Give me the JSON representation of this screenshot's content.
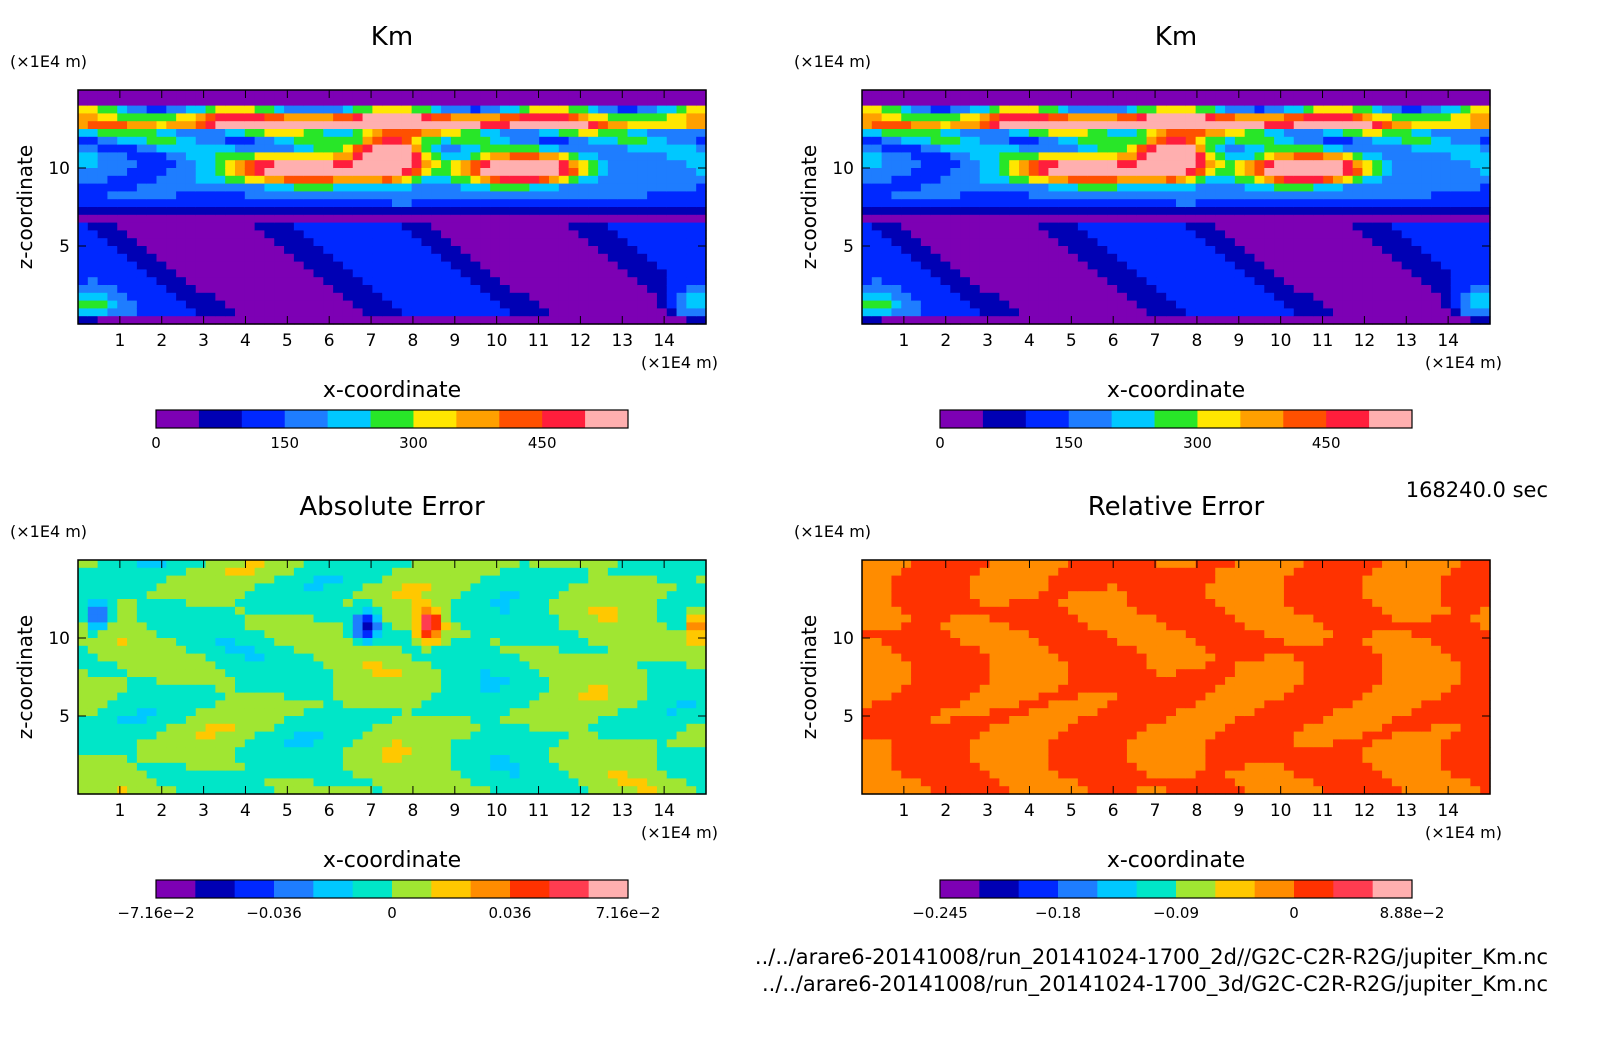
{
  "timestamp": "168240.0 sec",
  "footer": {
    "line1": "../../arare6-20141008/run_20141024-1700_2d//G2C-C2R-R2G/jupiter_Km.nc",
    "line2": "../../arare6-20141008/run_20141024-1700_3d/G2C-C2R-R2G/jupiter_Km.nc"
  },
  "chart_data": [
    {
      "type": "heatmap",
      "title": "Km",
      "xlabel": "x-coordinate",
      "ylabel": "z-coordinate",
      "x_unit": "(×1E4 m)",
      "y_unit": "(×1E4 m)",
      "xlim": [
        0,
        15
      ],
      "ylim": [
        0,
        15
      ],
      "x_ticks": [
        "1",
        "2",
        "3",
        "4",
        "5",
        "6",
        "7",
        "8",
        "9",
        "10",
        "11",
        "12",
        "13",
        "14"
      ],
      "y_ticks": [
        "5",
        "10"
      ],
      "colorbar": {
        "levels": 11,
        "tick_labels": [
          "0",
          "150",
          "300",
          "450"
        ],
        "colors": [
          "#7d00b4",
          "#0000b4",
          "#0028ff",
          "#1e7dff",
          "#00c8ff",
          "#28e628",
          "#ffe600",
          "#ffa000",
          "#ff5000",
          "#ff1e3c",
          "#ffafaf"
        ]
      },
      "field": "km"
    },
    {
      "type": "heatmap",
      "title": "Km",
      "xlabel": "x-coordinate",
      "ylabel": "z-coordinate",
      "x_unit": "(×1E4 m)",
      "y_unit": "(×1E4 m)",
      "xlim": [
        0,
        15
      ],
      "ylim": [
        0,
        15
      ],
      "x_ticks": [
        "1",
        "2",
        "3",
        "4",
        "5",
        "6",
        "7",
        "8",
        "9",
        "10",
        "11",
        "12",
        "13",
        "14"
      ],
      "y_ticks": [
        "5",
        "10"
      ],
      "colorbar": {
        "levels": 11,
        "tick_labels": [
          "0",
          "150",
          "300",
          "450"
        ],
        "colors": [
          "#7d00b4",
          "#0000b4",
          "#0028ff",
          "#1e7dff",
          "#00c8ff",
          "#28e628",
          "#ffe600",
          "#ffa000",
          "#ff5000",
          "#ff1e3c",
          "#ffafaf"
        ]
      },
      "field": "km"
    },
    {
      "type": "heatmap",
      "title": "Absolute Error",
      "xlabel": "x-coordinate",
      "ylabel": "z-coordinate",
      "x_unit": "(×1E4 m)",
      "y_unit": "(×1E4 m)",
      "xlim": [
        0,
        15
      ],
      "ylim": [
        0,
        15
      ],
      "x_ticks": [
        "1",
        "2",
        "3",
        "4",
        "5",
        "6",
        "7",
        "8",
        "9",
        "10",
        "11",
        "12",
        "13",
        "14"
      ],
      "y_ticks": [
        "5",
        "10"
      ],
      "colorbar": {
        "levels": 12,
        "tick_labels": [
          "−7.16e−2",
          "−0.036",
          "0",
          "0.036",
          "7.16e−2"
        ],
        "colors": [
          "#7d00b4",
          "#0000b4",
          "#0028ff",
          "#1e7dff",
          "#00c8ff",
          "#00e6c8",
          "#a0e632",
          "#ffc800",
          "#ff8c00",
          "#ff3200",
          "#ff3c50",
          "#ffafaf"
        ]
      },
      "field": "abs"
    },
    {
      "type": "heatmap",
      "title": "Relative Error",
      "xlabel": "x-coordinate",
      "ylabel": "z-coordinate",
      "x_unit": "(×1E4 m)",
      "y_unit": "(×1E4 m)",
      "xlim": [
        0,
        15
      ],
      "ylim": [
        0,
        15
      ],
      "x_ticks": [
        "1",
        "2",
        "3",
        "4",
        "5",
        "6",
        "7",
        "8",
        "9",
        "10",
        "11",
        "12",
        "13",
        "14"
      ],
      "y_ticks": [
        "5",
        "10"
      ],
      "colorbar": {
        "levels": 12,
        "tick_labels": [
          "−0.245",
          "−0.18",
          "−0.09",
          "0",
          "8.88e−2"
        ],
        "colors": [
          "#7d00b4",
          "#0000b4",
          "#0028ff",
          "#1e7dff",
          "#00c8ff",
          "#00e6c8",
          "#a0e632",
          "#ffc800",
          "#ff8c00",
          "#ff3200",
          "#ff3c50",
          "#ffafaf"
        ]
      },
      "field": "rel"
    }
  ]
}
